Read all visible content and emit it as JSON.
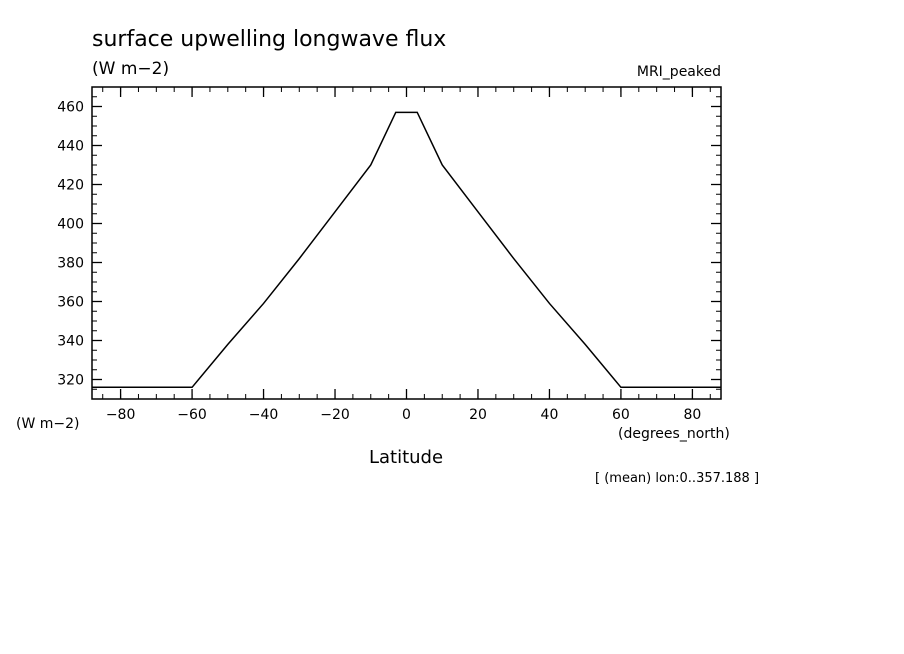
{
  "chart_data": {
    "type": "line",
    "title": "surface upwelling longwave flux",
    "units": "(W m−2)",
    "dataset": "MRI_peaked",
    "ylabel": "(W m−2)",
    "xunits": "(degrees_north)",
    "xlabel": "Latitude",
    "note": "[ (mean) lon:0..357.188 ]",
    "xlim": [
      -88,
      88
    ],
    "ylim": [
      310,
      470
    ],
    "xticks": [
      -80,
      -60,
      -40,
      -20,
      0,
      20,
      40,
      60,
      80
    ],
    "xtick_labels": [
      "−80",
      "−60",
      "−40",
      "−20",
      "0",
      "20",
      "40",
      "60",
      "80"
    ],
    "yticks": [
      320,
      340,
      360,
      380,
      400,
      420,
      440,
      460
    ],
    "ytick_labels": [
      "320",
      "340",
      "360",
      "380",
      "400",
      "420",
      "440",
      "460"
    ],
    "grid": false,
    "series": [
      {
        "x": [
          -88,
          -60,
          -50,
          -40,
          -30,
          -20,
          -10,
          -3,
          0,
          3,
          10,
          20,
          30,
          40,
          50,
          60,
          88
        ],
        "y": [
          316,
          316,
          338,
          359,
          382,
          406,
          430,
          457,
          457,
          457,
          430,
          406,
          382,
          359,
          338,
          316,
          316
        ]
      }
    ]
  }
}
